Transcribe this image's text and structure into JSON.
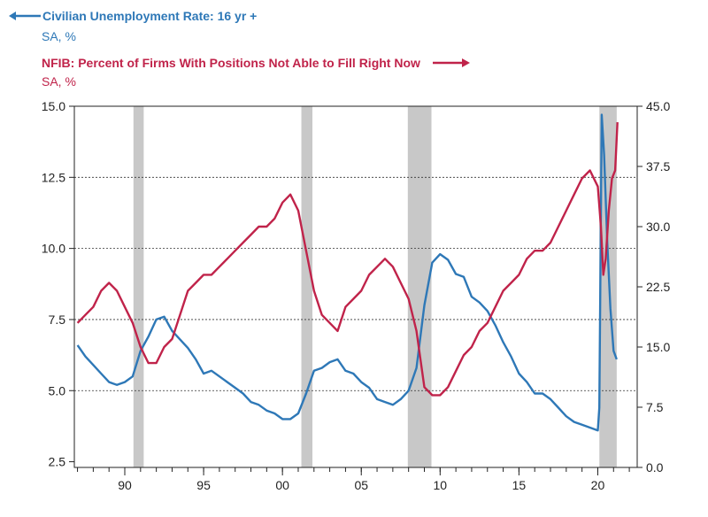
{
  "legend": {
    "series1_title": "Civilian Unemployment Rate: 16 yr +",
    "series1_sub": "SA, %",
    "series2_title": "NFIB: Percent of Firms With Positions Not Able to Fill Right Now",
    "series2_sub": "SA, %"
  },
  "colors": {
    "unemployment": "#2e78b7",
    "nfib": "#c0234a",
    "recession": "#c8c8c8",
    "grid": "#333333"
  },
  "chart_data": {
    "type": "line",
    "x_range": [
      1986.8,
      2022.5
    ],
    "x_ticks": [
      {
        "value": 1990,
        "label": "90"
      },
      {
        "value": 1995,
        "label": "95"
      },
      {
        "value": 2000,
        "label": "00"
      },
      {
        "value": 2005,
        "label": "05"
      },
      {
        "value": 2010,
        "label": "10"
      },
      {
        "value": 2015,
        "label": "15"
      },
      {
        "value": 2020,
        "label": "20"
      }
    ],
    "y_left": {
      "range": [
        2.3,
        15.0
      ],
      "ticks": [
        "15.0",
        "12.5",
        "10.0",
        "7.5",
        "5.0",
        "2.5"
      ]
    },
    "y_right": {
      "range": [
        0.0,
        45.0
      ],
      "ticks": [
        "45.0",
        "37.5",
        "30.0",
        "22.5",
        "15.0",
        "7.5",
        "0.0"
      ]
    },
    "gridlines_left": [
      12.5,
      10.0,
      7.5,
      5.0
    ],
    "recessions": [
      [
        1990.55,
        1991.2
      ],
      [
        2001.2,
        2001.9
      ],
      [
        2007.95,
        2009.45
      ],
      [
        2020.1,
        2021.2
      ]
    ],
    "series": [
      {
        "name": "Civilian Unemployment Rate: 16 yr +",
        "axis": "left",
        "x": [
          1987.0,
          1987.5,
          1988.0,
          1988.5,
          1989.0,
          1989.5,
          1990.0,
          1990.5,
          1991.0,
          1991.5,
          1992.0,
          1992.5,
          1993.0,
          1993.5,
          1994.0,
          1994.5,
          1995.0,
          1995.5,
          1996.0,
          1996.5,
          1997.0,
          1997.5,
          1998.0,
          1998.5,
          1999.0,
          1999.5,
          2000.0,
          2000.5,
          2001.0,
          2001.5,
          2002.0,
          2002.5,
          2003.0,
          2003.5,
          2004.0,
          2004.5,
          2005.0,
          2005.5,
          2006.0,
          2006.5,
          2007.0,
          2007.5,
          2008.0,
          2008.5,
          2009.0,
          2009.5,
          2010.0,
          2010.5,
          2011.0,
          2011.5,
          2012.0,
          2012.5,
          2013.0,
          2013.5,
          2014.0,
          2014.5,
          2015.0,
          2015.5,
          2016.0,
          2016.5,
          2017.0,
          2017.5,
          2018.0,
          2018.5,
          2019.0,
          2019.5,
          2020.0,
          2020.1,
          2020.25,
          2020.4,
          2020.6,
          2020.8,
          2021.0,
          2021.2
        ],
        "values": [
          6.6,
          6.2,
          5.9,
          5.6,
          5.3,
          5.2,
          5.3,
          5.5,
          6.4,
          6.9,
          7.5,
          7.6,
          7.1,
          6.8,
          6.5,
          6.1,
          5.6,
          5.7,
          5.5,
          5.3,
          5.1,
          4.9,
          4.6,
          4.5,
          4.3,
          4.2,
          4.0,
          4.0,
          4.2,
          4.9,
          5.7,
          5.8,
          6.0,
          6.1,
          5.7,
          5.6,
          5.3,
          5.1,
          4.7,
          4.6,
          4.5,
          4.7,
          5.0,
          5.8,
          8.0,
          9.5,
          9.8,
          9.6,
          9.1,
          9.0,
          8.3,
          8.1,
          7.8,
          7.3,
          6.7,
          6.2,
          5.6,
          5.3,
          4.9,
          4.9,
          4.7,
          4.4,
          4.1,
          3.9,
          3.8,
          3.7,
          3.6,
          4.4,
          14.7,
          13.3,
          10.2,
          7.9,
          6.4,
          6.1
        ]
      },
      {
        "name": "NFIB: Percent of Firms With Positions Not Able to Fill Right Now",
        "axis": "right",
        "x": [
          1987.0,
          1987.5,
          1988.0,
          1988.5,
          1989.0,
          1989.5,
          1990.0,
          1990.5,
          1991.0,
          1991.5,
          1992.0,
          1992.5,
          1993.0,
          1993.5,
          1994.0,
          1994.5,
          1995.0,
          1995.5,
          1996.0,
          1996.5,
          1997.0,
          1997.5,
          1998.0,
          1998.5,
          1999.0,
          1999.5,
          2000.0,
          2000.5,
          2001.0,
          2001.5,
          2002.0,
          2002.5,
          2003.0,
          2003.5,
          2004.0,
          2004.5,
          2005.0,
          2005.5,
          2006.0,
          2006.5,
          2007.0,
          2007.5,
          2008.0,
          2008.5,
          2009.0,
          2009.5,
          2010.0,
          2010.5,
          2011.0,
          2011.5,
          2012.0,
          2012.5,
          2013.0,
          2013.5,
          2014.0,
          2014.5,
          2015.0,
          2015.5,
          2016.0,
          2016.5,
          2017.0,
          2017.5,
          2018.0,
          2018.5,
          2019.0,
          2019.5,
          2020.0,
          2020.2,
          2020.35,
          2020.5,
          2020.7,
          2020.9,
          2021.1,
          2021.25
        ],
        "values": [
          18,
          19,
          20,
          22,
          23,
          22,
          20,
          18,
          15,
          13,
          13,
          15,
          16,
          19,
          22,
          23,
          24,
          24,
          25,
          26,
          27,
          28,
          29,
          30,
          30,
          31,
          33,
          34,
          32,
          27,
          22,
          19,
          18,
          17,
          20,
          21,
          22,
          24,
          25,
          26,
          25,
          23,
          21,
          17,
          10,
          9,
          9,
          10,
          12,
          14,
          15,
          17,
          18,
          20,
          22,
          23,
          24,
          26,
          27,
          27,
          28,
          30,
          32,
          34,
          36,
          37,
          35,
          30,
          24,
          26,
          32,
          36,
          37,
          43
        ]
      }
    ]
  }
}
